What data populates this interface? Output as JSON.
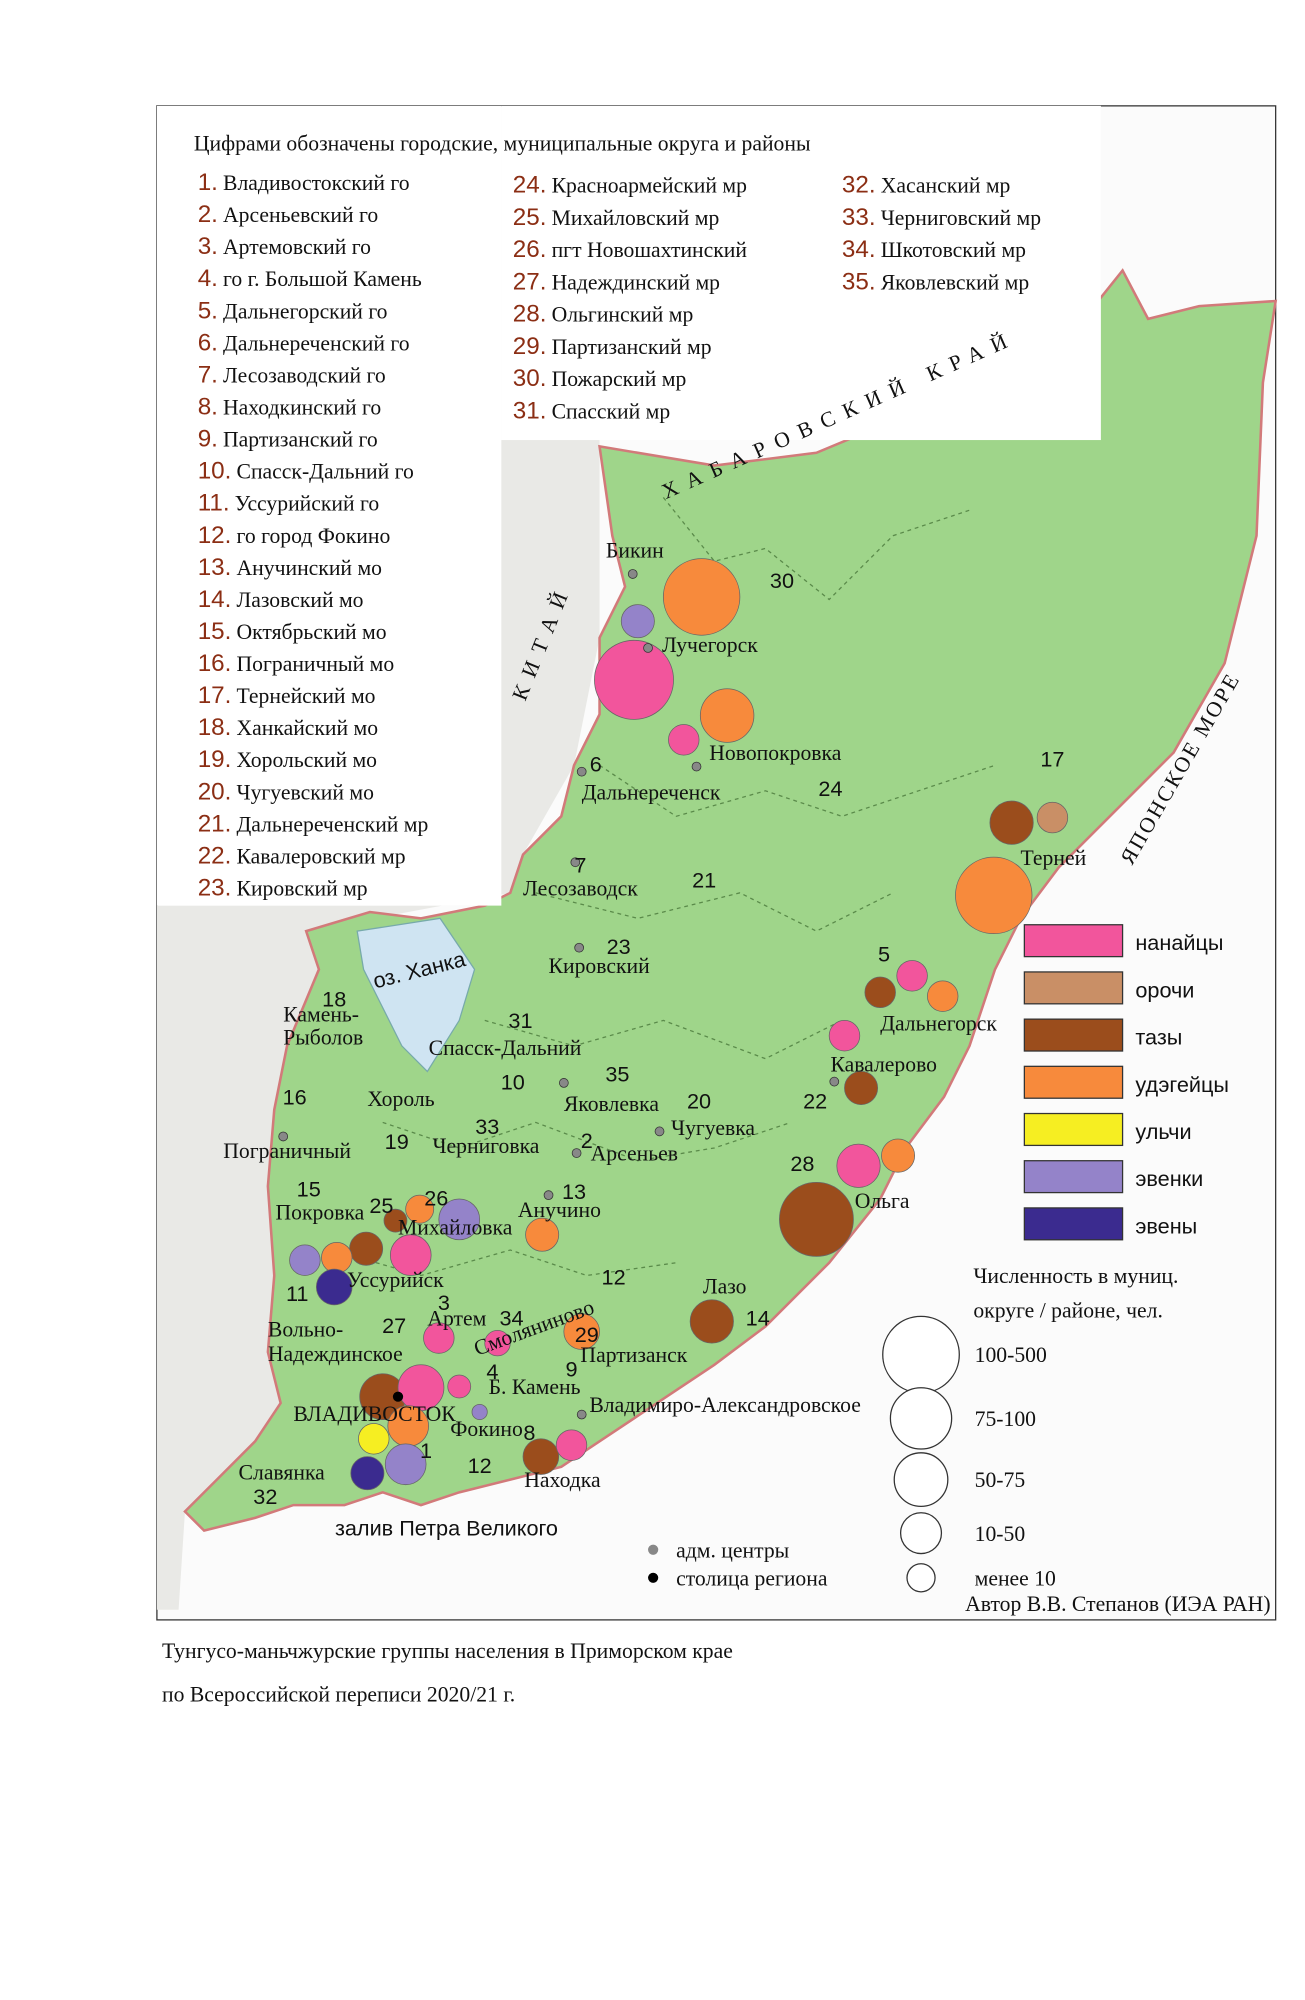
{
  "header": {
    "subtitle": "Цифрами обозначены городские, муниципальные округа и районы"
  },
  "districts": [
    {
      "number": "1.",
      "name": "Владивостокский го"
    },
    {
      "number": "2.",
      "name": "Арсеньевский го"
    },
    {
      "number": "3.",
      "name": "Артемовский го"
    },
    {
      "number": "4.",
      "name": "го г. Большой Камень"
    },
    {
      "number": "5.",
      "name": "Дальнегорский го"
    },
    {
      "number": "6.",
      "name": "Дальнереченский го"
    },
    {
      "number": "7.",
      "name": "Лесозаводский го"
    },
    {
      "number": "8.",
      "name": "Находкинский го"
    },
    {
      "number": "9.",
      "name": "Партизанский го"
    },
    {
      "number": "10.",
      "name": "Спасск-Дальний го"
    },
    {
      "number": "11.",
      "name": "Уссурийский го"
    },
    {
      "number": "12.",
      "name": "го город Фокино"
    },
    {
      "number": "13.",
      "name": "Анучинский мо"
    },
    {
      "number": "14.",
      "name": "Лазовский мо"
    },
    {
      "number": "15.",
      "name": "Октябрьский мо"
    },
    {
      "number": "16.",
      "name": "Пограничный мо"
    },
    {
      "number": "17.",
      "name": "Тернейский мо"
    },
    {
      "number": "18.",
      "name": "Ханкайский мо"
    },
    {
      "number": "19.",
      "name": "Хорольский мо"
    },
    {
      "number": "20.",
      "name": "Чугуевский мо"
    },
    {
      "number": "21.",
      "name": "Дальнереченский мр"
    },
    {
      "number": "22.",
      "name": "Кавалеровский мр"
    },
    {
      "number": "23.",
      "name": "Кировский мр"
    },
    {
      "number": "24.",
      "name": "Красноармейский мр"
    },
    {
      "number": "25.",
      "name": "Михайловский мр"
    },
    {
      "number": "26.",
      "name": "пгт Новошахтинский"
    },
    {
      "number": "27.",
      "name": "Надеждинский мр"
    },
    {
      "number": "28.",
      "name": "Ольгинский мр"
    },
    {
      "number": "29.",
      "name": "Партизанский мр"
    },
    {
      "number": "30.",
      "name": "Пожарский мр"
    },
    {
      "number": "31.",
      "name": "Спасский мр"
    },
    {
      "number": "32.",
      "name": "Хасанский мр"
    },
    {
      "number": "33.",
      "name": "Черниговский мр"
    },
    {
      "number": "34.",
      "name": "Шкотовский мр"
    },
    {
      "number": "35.",
      "name": "Яковлевский мр"
    }
  ],
  "map": {
    "regions": [
      "ХАБАРОВСКИЙ КРАЙ",
      "КИТАЙ",
      "ЯПОНСКОЕ МОРЕ",
      "оз. Ханка",
      "залив Петра Великого"
    ],
    "places": [
      "Бикин",
      "Лучегорск",
      "Новопокровка",
      "Дальнереченск",
      "Лесозаводск",
      "Кировский",
      "Спасск-Дальний",
      "Хороль",
      "Яковлевка",
      "Чугуевка",
      "Пограничный",
      "Черниговка",
      "Арсеньев",
      "Анучино",
      "Покровка",
      "Михайловка",
      "Уссурийск",
      "Вольно-",
      "Надеждинское",
      "Артем",
      "Смоляниново",
      "Партизанск",
      "Б. Камень",
      "ВЛАДИВОСТОК",
      "Фокино",
      "Владимиро-Александровское",
      "Находка",
      "Славянка",
      "Лазо",
      "Ольга",
      "Кавалерово",
      "Дальнегорск",
      "Терней",
      "Камень-",
      "Рыболов"
    ],
    "district_numbers": [
      "30",
      "24",
      "17",
      "6",
      "7",
      "21",
      "23",
      "5",
      "18",
      "31",
      "10",
      "35",
      "16",
      "20",
      "22",
      "33",
      "19",
      "2",
      "28",
      "13",
      "15",
      "25",
      "26",
      "3",
      "34",
      "11",
      "27",
      "12",
      "14",
      "29",
      "9",
      "4",
      "8",
      "1",
      "12",
      "32"
    ]
  },
  "legend": {
    "groups": [
      {
        "name": "нанайцы",
        "color": "#f2559c"
      },
      {
        "name": "орочи",
        "color": "#c98f66"
      },
      {
        "name": "тазы",
        "color": "#9b4d1c"
      },
      {
        "name": "удэгейцы",
        "color": "#f78a3c"
      },
      {
        "name": "ульчи",
        "color": "#f6ee22"
      },
      {
        "name": "эвенки",
        "color": "#9483c9"
      },
      {
        "name": "эвены",
        "color": "#3b2b8f"
      }
    ],
    "size_title": [
      "Численность в муниц.",
      "округе / районе, чел."
    ],
    "sizes": [
      "100-500",
      "75-100",
      "50-75",
      "10-50",
      "менее 10"
    ],
    "markers": [
      "адм. центры",
      "столица региона"
    ]
  },
  "author": "Автор В.В. Степанов (ИЭА РАН)",
  "caption": [
    "Тунгусо-маньчжурские группы населения в Приморском крае",
    "по Всероссийской переписи 2020/21 г."
  ]
}
